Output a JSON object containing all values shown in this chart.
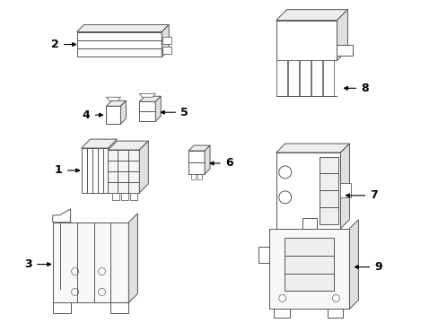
{
  "bg_color": "#ffffff",
  "fig_width": 4.89,
  "fig_height": 3.6,
  "dpi": 100,
  "line_color": "#555555",
  "lw": 0.7
}
